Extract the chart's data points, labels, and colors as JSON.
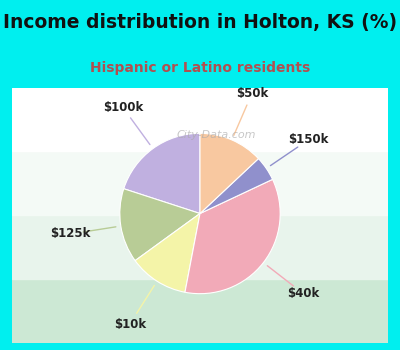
{
  "title": "Income distribution in Holton, KS (%)",
  "subtitle": "Hispanic or Latino residents",
  "title_color": "#111111",
  "subtitle_color": "#b05050",
  "background_outer": "#00efef",
  "background_inner_top": "#d8ede0",
  "background_inner_bottom": "#eef8f0",
  "labels": [
    "$100k",
    "$125k",
    "$10k",
    "$40k",
    "$150k",
    "$50k"
  ],
  "sizes": [
    20,
    15,
    12,
    35,
    5,
    13
  ],
  "colors": [
    "#c0b0e0",
    "#b8cc96",
    "#f4f4a8",
    "#f2aab8",
    "#9090cc",
    "#f8c8a0"
  ],
  "startangle": 90,
  "watermark": "City-Data.com"
}
